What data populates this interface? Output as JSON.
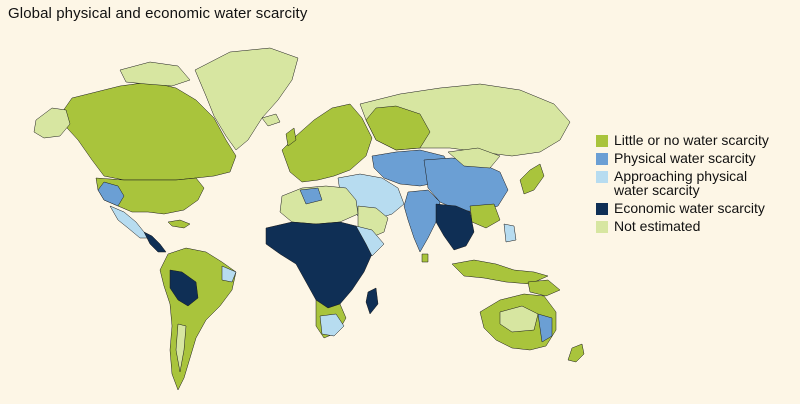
{
  "title": "Global physical and economic water scarcity",
  "colors": {
    "background": "#fdf6e6",
    "little": "#a9c43c",
    "physical": "#6b9fd4",
    "approaching": "#b7dcf0",
    "economic": "#0f2f55",
    "not_estimated": "#d7e6a1"
  },
  "legend": [
    {
      "label": "Little or no water scarcity",
      "color_key": "little"
    },
    {
      "label": "Physical water scarcity",
      "color_key": "physical"
    },
    {
      "label": "Approaching physical\nwater scarcity",
      "color_key": "approaching"
    },
    {
      "label": "Economic water scarcity",
      "color_key": "economic"
    },
    {
      "label": "Not estimated",
      "color_key": "not_estimated"
    }
  ]
}
